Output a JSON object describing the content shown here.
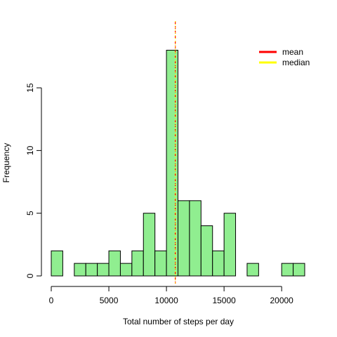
{
  "chart_data": {
    "type": "bar",
    "title": "",
    "xlabel": "Total number of steps per day",
    "ylabel": "Frequency",
    "bin_width": 1000,
    "bins_start": [
      0,
      1000,
      2000,
      3000,
      4000,
      5000,
      6000,
      7000,
      8000,
      9000,
      10000,
      11000,
      12000,
      13000,
      14000,
      15000,
      16000,
      17000,
      18000,
      19000,
      20000,
      21000
    ],
    "values": [
      2,
      0,
      1,
      1,
      1,
      2,
      1,
      2,
      5,
      2,
      18,
      6,
      6,
      4,
      2,
      5,
      0,
      1,
      0,
      0,
      1,
      1
    ],
    "xlim": [
      0,
      22000
    ],
    "ylim": [
      0,
      18
    ],
    "x_ticks": [
      0,
      5000,
      10000,
      15000,
      20000
    ],
    "x_tick_labels": [
      "0",
      "5000",
      "10000",
      "15000",
      "20000"
    ],
    "y_ticks": [
      0,
      5,
      10,
      15
    ],
    "y_tick_labels": [
      "0",
      "5",
      "10",
      "15"
    ],
    "bar_color": "#90EE90",
    "lines": [
      {
        "name": "mean",
        "x": 10766,
        "color": "#FF0000",
        "style": "dashed"
      },
      {
        "name": "median",
        "x": 10765,
        "color": "#FFFF00",
        "style": "dotted"
      }
    ],
    "legend": {
      "placement": "top-right",
      "entries": [
        {
          "label": "mean",
          "color": "#FF0000"
        },
        {
          "label": "median",
          "color": "#FFFF00"
        }
      ]
    },
    "grid": false
  }
}
